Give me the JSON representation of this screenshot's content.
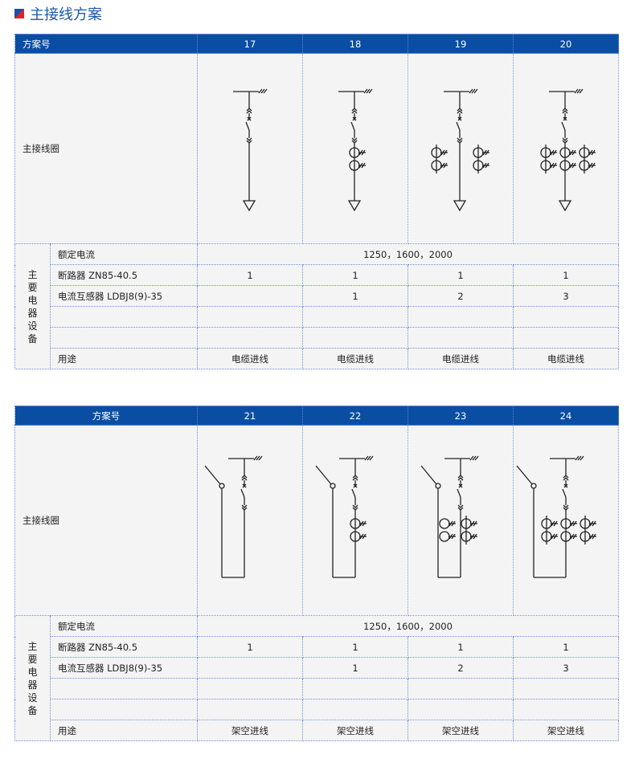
{
  "title": "主接线方案",
  "colors": {
    "header": "#0a4ea3",
    "title": "#1d58a8",
    "grid": "#6a8fd6"
  },
  "tables": [
    {
      "header_label": "方案号",
      "schemes": [
        "17",
        "18",
        "19",
        "20"
      ],
      "diagram_label": "主接线圈",
      "diagram_type": "cable-incoming",
      "ct_counts": [
        0,
        1,
        2,
        3
      ],
      "group_label": [
        "主",
        "要",
        "电",
        "器",
        "设",
        "备"
      ],
      "rated_current_label": "额定电流",
      "rated_current_value": "1250，1600，2000",
      "breaker_label": "断路器 ZN85-40.5",
      "breaker_values": [
        "1",
        "1",
        "1",
        "1"
      ],
      "ct_label": "电流互感器 LDBJ8(9)-35",
      "ct_values": [
        "",
        "1",
        "2",
        "3"
      ],
      "usage_label": "用途",
      "usage_values": [
        "电缆进线",
        "电缆进线",
        "电缆进线",
        "电缆进线"
      ]
    },
    {
      "header_label": "方案号",
      "schemes": [
        "21",
        "22",
        "23",
        "24"
      ],
      "diagram_label": "主接线圈",
      "diagram_type": "overhead-incoming",
      "ct_counts": [
        0,
        1,
        2,
        3
      ],
      "group_label": [
        "主",
        "要",
        "电",
        "器",
        "设",
        "备"
      ],
      "rated_current_label": "额定电流",
      "rated_current_value": "1250，1600，2000",
      "breaker_label": "断路器 ZN85-40.5",
      "breaker_values": [
        "1",
        "1",
        "1",
        "1"
      ],
      "ct_label": "电流互感器 LDBJ8(9)-35",
      "ct_values": [
        "",
        "1",
        "2",
        "3"
      ],
      "usage_label": "用途",
      "usage_values": [
        "架空进线",
        "架空进线",
        "架空进线",
        "架空进线"
      ]
    }
  ]
}
